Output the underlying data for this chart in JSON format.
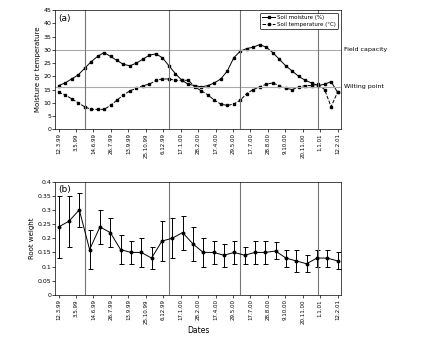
{
  "x_labels": [
    "12.3.99",
    "3.5.99",
    "14.6.99",
    "26.7.99",
    "13.9.99",
    "25.10.99",
    "6.12.99",
    "17.1.00",
    "28.2.00",
    "17.4.00",
    "29.5.00",
    "17.7.00",
    "28.8.00",
    "9.10.00",
    "20.11.00",
    "1.1.01",
    "12.2.01"
  ],
  "soil_moisture": [
    16.5,
    17.5,
    19.0,
    20.5,
    23.0,
    25.5,
    27.5,
    29.0,
    27.5,
    26.0,
    24.5,
    24.0,
    25.0,
    26.5,
    28.0,
    28.5,
    27.0,
    24.0,
    21.0,
    18.5,
    17.0,
    16.5,
    16.0,
    16.5,
    17.5,
    19.0,
    22.0,
    27.0,
    29.5,
    30.5,
    31.0,
    32.0,
    31.0,
    29.0,
    26.5,
    24.0,
    22.0,
    20.0,
    18.5,
    17.5,
    16.5,
    17.0,
    18.0,
    14.0
  ],
  "soil_temperature": [
    14.0,
    13.0,
    11.5,
    10.0,
    8.5,
    7.5,
    7.5,
    7.5,
    9.0,
    11.0,
    13.0,
    14.5,
    15.5,
    16.5,
    17.0,
    18.5,
    19.0,
    19.0,
    18.5,
    18.5,
    18.5,
    16.0,
    14.5,
    13.0,
    11.0,
    9.5,
    9.0,
    9.5,
    11.0,
    13.5,
    15.0,
    16.0,
    17.0,
    17.5,
    16.5,
    15.5,
    15.0,
    16.0,
    16.5,
    16.5,
    17.0,
    15.0,
    8.5,
    14.0
  ],
  "field_capacity": 30,
  "wilting_point": 16,
  "vline_x_indices": [
    4,
    17,
    28,
    40
  ],
  "root_weight_mean": [
    0.24,
    0.26,
    0.3,
    0.16,
    0.24,
    0.22,
    0.16,
    0.15,
    0.15,
    0.13,
    0.19,
    0.2,
    0.22,
    0.18,
    0.15,
    0.15,
    0.14,
    0.15,
    0.14,
    0.15,
    0.15,
    0.155,
    0.13,
    0.12,
    0.11,
    0.13,
    0.13,
    0.12
  ],
  "root_weight_err": [
    0.11,
    0.09,
    0.06,
    0.07,
    0.06,
    0.05,
    0.05,
    0.04,
    0.05,
    0.04,
    0.07,
    0.07,
    0.06,
    0.06,
    0.05,
    0.04,
    0.04,
    0.04,
    0.03,
    0.04,
    0.04,
    0.03,
    0.03,
    0.04,
    0.03,
    0.03,
    0.03,
    0.03
  ],
  "vline_color": "#777777",
  "fc_wpt_color": "#aaaaaa"
}
